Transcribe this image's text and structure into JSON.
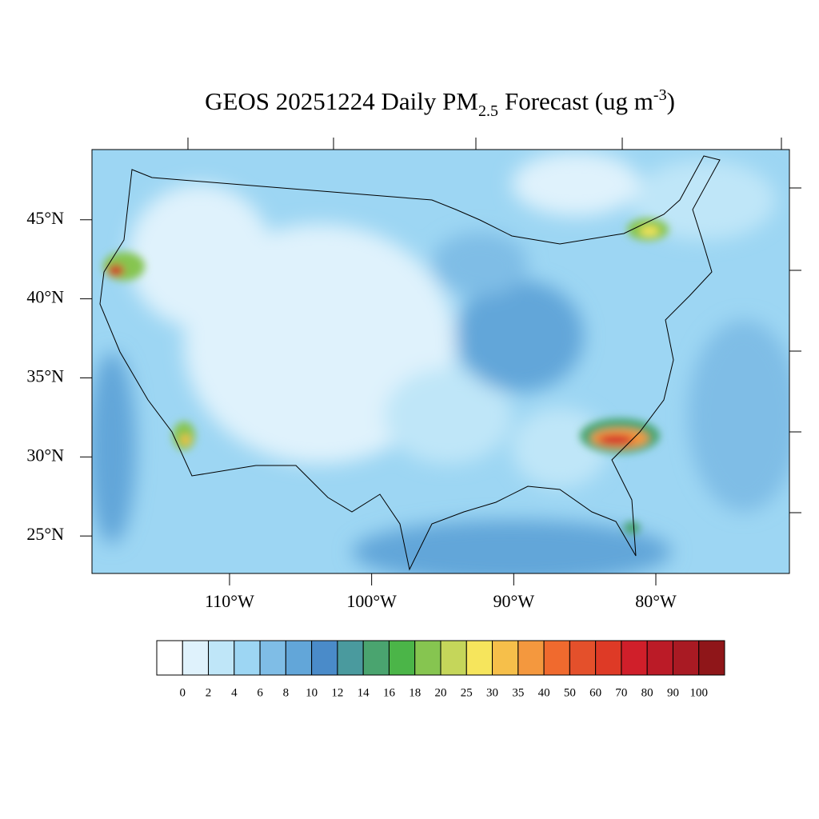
{
  "title": {
    "text": "GEOS 20251224 Daily PM",
    "subscript": "2.5",
    "text_after": "Forecast (ug m",
    "superscript": "-3",
    "closing": ")"
  },
  "map": {
    "type": "map",
    "latlim": [
      22.63,
      49.44
    ],
    "lonlim": [
      -119.68,
      -70.6
    ],
    "lat_ticks": [
      {
        "value": 25,
        "label": "25°N"
      },
      {
        "value": 30,
        "label": "30°N"
      },
      {
        "value": 35,
        "label": "35°N"
      },
      {
        "value": 40,
        "label": "40°N"
      },
      {
        "value": 45,
        "label": "45°N"
      }
    ],
    "lon_ticks": [
      {
        "value": -110,
        "label": "110°W"
      },
      {
        "value": -100,
        "label": "100°W"
      },
      {
        "value": -90,
        "label": "90°W"
      },
      {
        "value": -80,
        "label": "80°W"
      }
    ]
  },
  "colorbar": {
    "levels": [
      0,
      2,
      4,
      6,
      8,
      10,
      12,
      14,
      16,
      18,
      20,
      25,
      30,
      35,
      40,
      50,
      60,
      70,
      80,
      90,
      100
    ],
    "colors": [
      "#ffffff",
      "#dff2fc",
      "#bfe6f8",
      "#9dd6f3",
      "#7fbde6",
      "#62a6d9",
      "#4a8bc9",
      "#4a9a9e",
      "#4aa46f",
      "#4bb548",
      "#86c550",
      "#c5d65a",
      "#f6e55c",
      "#f6bf4a",
      "#f4983e",
      "#f06a2e",
      "#e4502b",
      "#de3a26",
      "#d01f2a",
      "#bb1b27",
      "#a91a23",
      "#8f1619"
    ]
  }
}
